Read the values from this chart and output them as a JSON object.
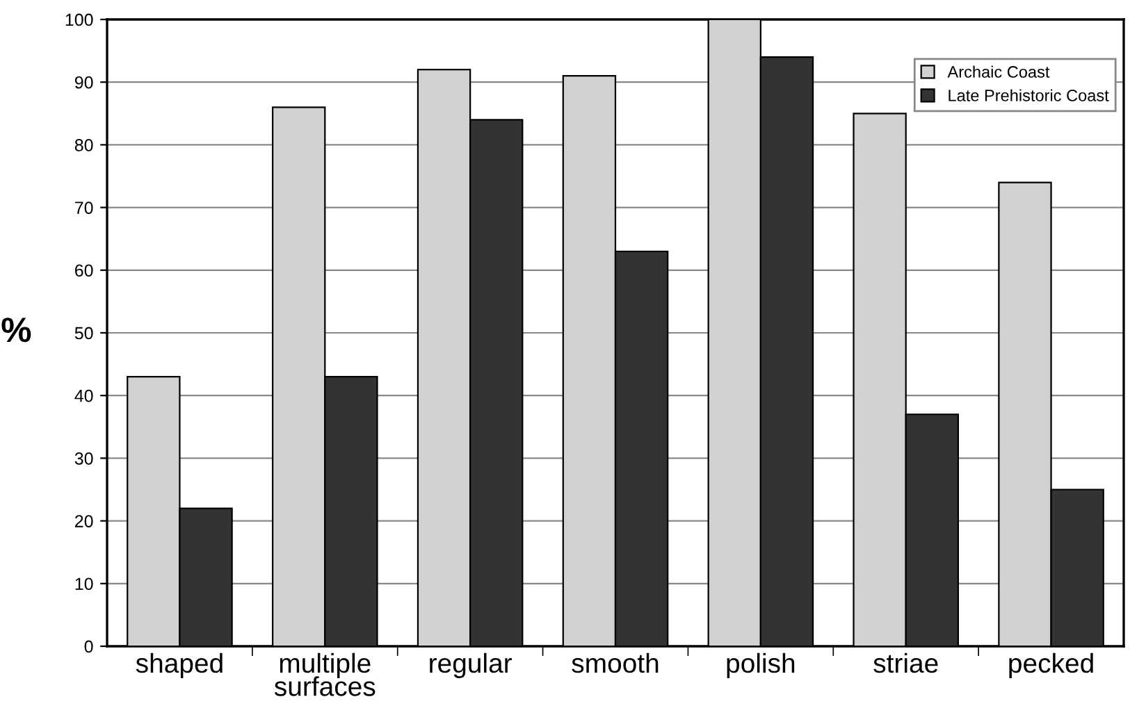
{
  "chart_data": {
    "type": "bar",
    "ylabel": "%",
    "categories": [
      "shaped",
      "multiple\nsurfaces",
      "regular",
      "smooth",
      "polish",
      "striae",
      "pecked"
    ],
    "series": [
      {
        "name": "Archaic Coast",
        "color": "#d0d1d3",
        "values": [
          43,
          86,
          92,
          91,
          100,
          85,
          74
        ]
      },
      {
        "name": "Late Prehistoric Coast",
        "color": "#333333",
        "values": [
          22,
          43,
          84,
          63,
          94,
          37,
          25
        ]
      }
    ],
    "ylim": [
      0,
      100
    ],
    "yticks": [
      0,
      10,
      20,
      30,
      40,
      50,
      60,
      70,
      80,
      90,
      100
    ],
    "grid": "y",
    "legend": "top right"
  }
}
